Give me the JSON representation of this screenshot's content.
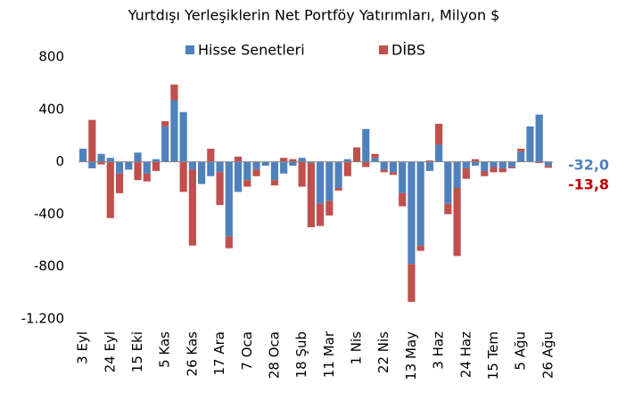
{
  "chart_data": {
    "type": "bar",
    "stacked": true,
    "title": "Yurtdışı Yerleşiklerin Net Portföy Yatırımları, Milyon $",
    "categories": [
      "3 Eyl",
      null,
      null,
      "24 Eyl",
      null,
      null,
      "15 Eki",
      null,
      null,
      "5 Kas",
      null,
      null,
      "26 Kas",
      null,
      null,
      "17 Ara",
      null,
      null,
      "7 Oca",
      null,
      null,
      "28 Oca",
      null,
      null,
      "18 Şub",
      null,
      null,
      "11 Mar",
      null,
      null,
      "1 Nis",
      null,
      null,
      "22 Nis",
      null,
      null,
      "13 May",
      null,
      null,
      "3 Haz",
      null,
      null,
      "24 Haz",
      null,
      null,
      "15 Tem",
      null,
      null,
      "5 Ağu",
      null,
      null,
      "26 Ağu"
    ],
    "series": [
      {
        "name": "Hisse Senetleri",
        "color": "#4f81bd",
        "values": [
          100,
          -50,
          60,
          30,
          -90,
          -60,
          70,
          -90,
          20,
          270,
          470,
          380,
          -60,
          -170,
          -110,
          -80,
          -570,
          -230,
          -140,
          -60,
          -30,
          -140,
          -90,
          -30,
          30,
          -10,
          -320,
          -300,
          -200,
          20,
          0,
          250,
          30,
          -60,
          -80,
          -240,
          -780,
          -640,
          -70,
          130,
          -320,
          -200,
          -50,
          -30,
          -70,
          -40,
          -50,
          -40,
          80,
          270,
          360,
          -32
        ]
      },
      {
        "name": "DİBS",
        "color": "#c0504d",
        "values": [
          0,
          320,
          -20,
          -430,
          -150,
          0,
          -140,
          -60,
          -70,
          40,
          120,
          -230,
          -580,
          0,
          100,
          -250,
          -90,
          40,
          -50,
          -50,
          0,
          -40,
          30,
          20,
          -190,
          -490,
          -170,
          -110,
          -20,
          -110,
          110,
          -40,
          30,
          -20,
          -20,
          -100,
          -290,
          -40,
          10,
          160,
          -80,
          -520,
          -80,
          20,
          -40,
          -40,
          -30,
          -10,
          20,
          0,
          -10,
          -13.8
        ]
      }
    ],
    "annotations": [
      {
        "text": "-32,0",
        "color": "#4f81bd"
      },
      {
        "text": "-13,8",
        "color": "#c00000"
      }
    ],
    "ylim": [
      -1200,
      800
    ],
    "yticks": [
      {
        "value": -1200,
        "label": "-1.200"
      },
      -800,
      -400,
      0,
      400,
      800
    ],
    "grid": false,
    "legend": "top"
  }
}
